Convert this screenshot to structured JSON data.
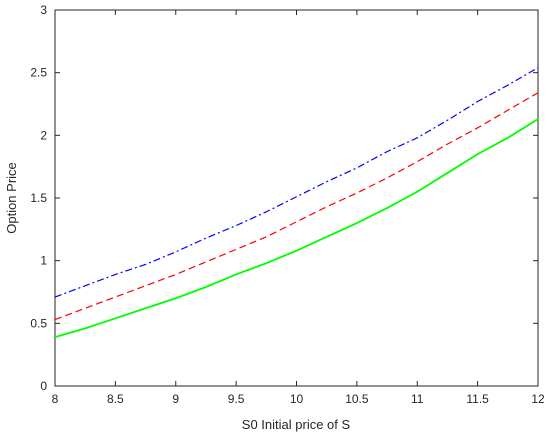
{
  "chart_data": {
    "type": "line",
    "title": "",
    "xlabel": "S0 Initial price of S",
    "ylabel": "Option Price",
    "xlim": [
      8,
      12
    ],
    "ylim": [
      0,
      3
    ],
    "xticks": [
      "8",
      "8.5",
      "9",
      "9.5",
      "10",
      "10.5",
      "11",
      "11.5",
      "12"
    ],
    "yticks": [
      "0",
      "0.5",
      "1",
      "1.5",
      "2",
      "2.5",
      "3"
    ],
    "grid": false,
    "legend": "none",
    "x": [
      8,
      8.25,
      8.5,
      8.75,
      9,
      9.25,
      9.5,
      9.75,
      10,
      10.25,
      10.5,
      10.75,
      11,
      11.25,
      11.5,
      11.75,
      12
    ],
    "series": [
      {
        "style": "dash-dot",
        "color": "#0000ff",
        "values": [
          0.71,
          0.8,
          0.89,
          0.97,
          1.07,
          1.18,
          1.28,
          1.39,
          1.51,
          1.63,
          1.74,
          1.87,
          1.98,
          2.12,
          2.27,
          2.4,
          2.54
        ]
      },
      {
        "style": "dashed",
        "color": "#ff0000",
        "values": [
          0.53,
          0.62,
          0.71,
          0.8,
          0.89,
          0.99,
          1.09,
          1.19,
          1.31,
          1.43,
          1.54,
          1.66,
          1.79,
          1.93,
          2.06,
          2.2,
          2.34
        ]
      },
      {
        "style": "solid",
        "color": "#00ff00",
        "values": [
          0.39,
          0.46,
          0.54,
          0.62,
          0.7,
          0.79,
          0.89,
          0.98,
          1.08,
          1.19,
          1.3,
          1.42,
          1.55,
          1.7,
          1.85,
          1.98,
          2.13
        ]
      }
    ]
  }
}
